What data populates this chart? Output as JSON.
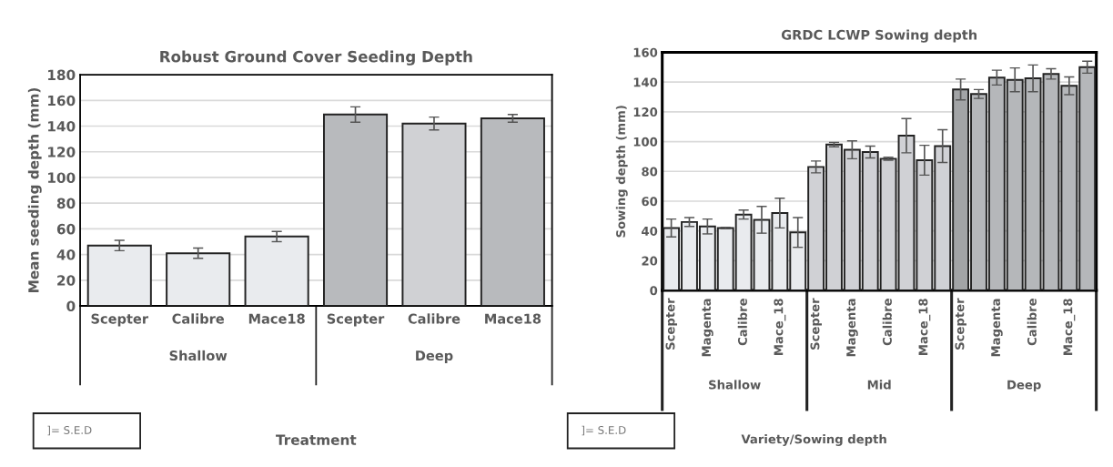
{
  "chart_data": [
    {
      "type": "bar",
      "title": "Robust Ground Cover Seeding Depth",
      "ylabel": "Mean seeding depth (mm)",
      "xlabel": "Treatment",
      "categories": [
        "Scepter",
        "Calibre",
        "Mace18",
        "Scepter",
        "Calibre",
        "Mace18"
      ],
      "values": [
        47,
        41,
        54,
        149,
        142,
        146
      ],
      "errors": [
        4,
        4,
        4,
        6,
        5,
        3
      ],
      "colors": [
        "#e9ebee",
        "#e9ebee",
        "#e9ebee",
        "#b8babd",
        "#d0d1d4",
        "#b8babd"
      ],
      "ylim": [
        0,
        180
      ],
      "yticks": [
        0,
        20,
        40,
        60,
        80,
        100,
        120,
        140,
        160,
        180
      ],
      "grid": "y",
      "annotations": [
        "Shallow",
        "Deep",
        "]= S.E.D"
      ]
    },
    {
      "type": "bar",
      "title": "GRDC LCWP Sowing depth",
      "ylabel": "Sowing depth (mm)",
      "xlabel": "Variety/Sowing depth",
      "categories": [
        "Scepter",
        null,
        "Magenta",
        null,
        "Calibre",
        null,
        "Mace_18",
        null,
        "Scepter",
        null,
        "Magenta",
        null,
        "Calibre",
        null,
        "Mace_18",
        null,
        "Scepter",
        null,
        "Magenta",
        null,
        "Calibre",
        null,
        "Mace_18",
        null
      ],
      "values": [
        42,
        46,
        43,
        42,
        51,
        47.5,
        52,
        39,
        83,
        98,
        94.5,
        93,
        88.5,
        104,
        87.5,
        97,
        135,
        132,
        143,
        141.5,
        142.5,
        145.5,
        137.5,
        150
      ],
      "errors": [
        6,
        3,
        5,
        0.5,
        3,
        9,
        10,
        10,
        4,
        1.5,
        6,
        4,
        1,
        11.5,
        10,
        11,
        7,
        3,
        5,
        8,
        9,
        3.5,
        6,
        4
      ],
      "colors": [
        "#e9ebee",
        "#e9ebee",
        "#e9ebee",
        "#e9ebee",
        "#e9ebee",
        "#e9ebee",
        "#e9ebee",
        "#e9ebee",
        "#d0d1d5",
        "#d0d1d5",
        "#d0d1d5",
        "#d0d1d5",
        "#d0d1d5",
        "#d0d1d5",
        "#d0d1d5",
        "#d0d1d5",
        "#a2a4a6",
        "#b5b7ba",
        "#b5b7ba",
        "#b5b7ba",
        "#b5b7ba",
        "#b5b7ba",
        "#b5b7ba",
        "#b5b7ba"
      ],
      "ylim": [
        0,
        160
      ],
      "yticks": [
        0,
        20,
        40,
        60,
        80,
        100,
        120,
        140,
        160
      ],
      "grid": "y",
      "annotations": [
        "Shallow",
        "Mid",
        "Deep",
        "]= S.E.D"
      ]
    }
  ]
}
